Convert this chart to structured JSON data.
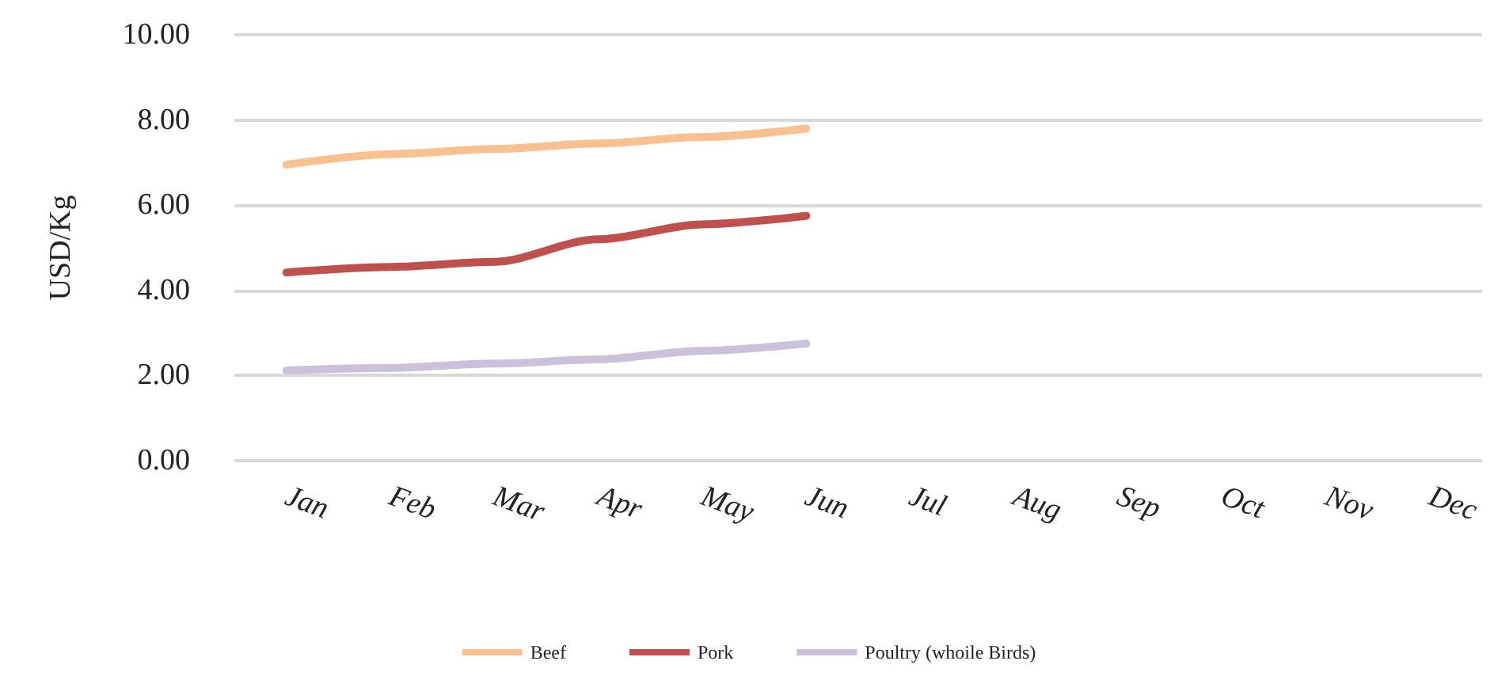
{
  "chart_data": {
    "type": "line",
    "ylabel": "USD/Kg",
    "categories": [
      "Jan",
      "Feb",
      "Mar",
      "Apr",
      "May",
      "Jun",
      "Jul",
      "Aug",
      "Sep",
      "Oct",
      "Nov",
      "Dec"
    ],
    "series": [
      {
        "name": "Beef",
        "color": "#fac090",
        "values": [
          6.95,
          7.2,
          7.32,
          7.45,
          7.6,
          7.8,
          null,
          null,
          null,
          null,
          null,
          null
        ]
      },
      {
        "name": "Pork",
        "color": "#c0504d",
        "values": [
          4.42,
          4.55,
          4.67,
          5.2,
          5.55,
          5.75,
          null,
          null,
          null,
          null,
          null,
          null
        ]
      },
      {
        "name": "Poultry (whoile Birds)",
        "color": "#ccc1da",
        "values": [
          2.12,
          2.18,
          2.28,
          2.38,
          2.58,
          2.75,
          null,
          null,
          null,
          null,
          null,
          null
        ]
      }
    ],
    "ylim": [
      0,
      10
    ],
    "yticks": [
      {
        "value": 0,
        "label": "0.00"
      },
      {
        "value": 2,
        "label": "2.00"
      },
      {
        "value": 4,
        "label": "4.00"
      },
      {
        "value": 6,
        "label": "6.00"
      },
      {
        "value": 8,
        "label": "8.00"
      },
      {
        "value": 10,
        "label": "10.00"
      }
    ],
    "grid": "y",
    "legend": "bottom",
    "marker": "none",
    "line_style": "solid"
  }
}
